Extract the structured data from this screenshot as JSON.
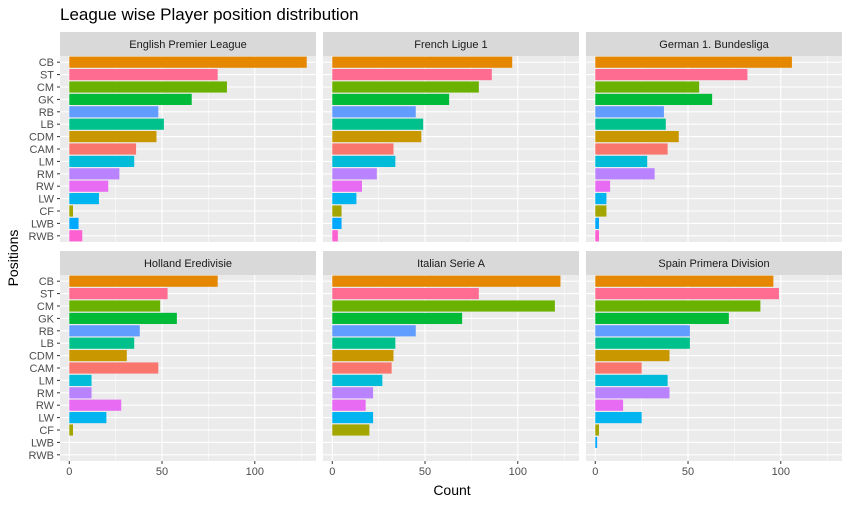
{
  "chart_data": {
    "type": "bar",
    "orientation": "horizontal",
    "facet_layout": "2x3",
    "title": "League wise Player position distribution",
    "xlabel": "Count",
    "ylabel": "Positions",
    "xlim": [
      -5,
      133
    ],
    "xticks": [
      0,
      50,
      100
    ],
    "grid": true,
    "legend": "none",
    "categories": [
      "CB",
      "ST",
      "CM",
      "GK",
      "RB",
      "LB",
      "CDM",
      "CAM",
      "LM",
      "RM",
      "RW",
      "LW",
      "CF",
      "LWB",
      "RWB"
    ],
    "category_colors": [
      "#E58700",
      "#FF6C91",
      "#6BB100",
      "#00BA38",
      "#619CFF",
      "#00C08B",
      "#C99800",
      "#F8766D",
      "#00BCD8",
      "#B983FF",
      "#E76BF3",
      "#00B4EF",
      "#A3A500",
      "#00A9FF",
      "#FD61D1"
    ],
    "panels": [
      {
        "name": "English Premier League",
        "values": [
          128,
          80,
          85,
          66,
          48,
          51,
          47,
          36,
          35,
          27,
          21,
          16,
          2,
          5,
          7
        ]
      },
      {
        "name": "French Ligue 1",
        "values": [
          97,
          86,
          79,
          63,
          45,
          49,
          48,
          33,
          34,
          24,
          16,
          13,
          5,
          5,
          3
        ]
      },
      {
        "name": "German 1. Bundesliga",
        "values": [
          106,
          82,
          56,
          63,
          37,
          38,
          45,
          39,
          28,
          32,
          8,
          6,
          6,
          2,
          2
        ]
      },
      {
        "name": "Holland Eredivisie",
        "values": [
          80,
          53,
          49,
          58,
          38,
          35,
          31,
          48,
          12,
          12,
          28,
          20,
          2,
          0,
          0
        ]
      },
      {
        "name": "Italian Serie A",
        "values": [
          123,
          79,
          120,
          70,
          45,
          34,
          33,
          32,
          27,
          22,
          18,
          22,
          20,
          0,
          0
        ]
      },
      {
        "name": "Spain Primera Division",
        "values": [
          96,
          99,
          89,
          72,
          51,
          51,
          40,
          25,
          39,
          40,
          15,
          25,
          2,
          1,
          0
        ]
      }
    ]
  }
}
